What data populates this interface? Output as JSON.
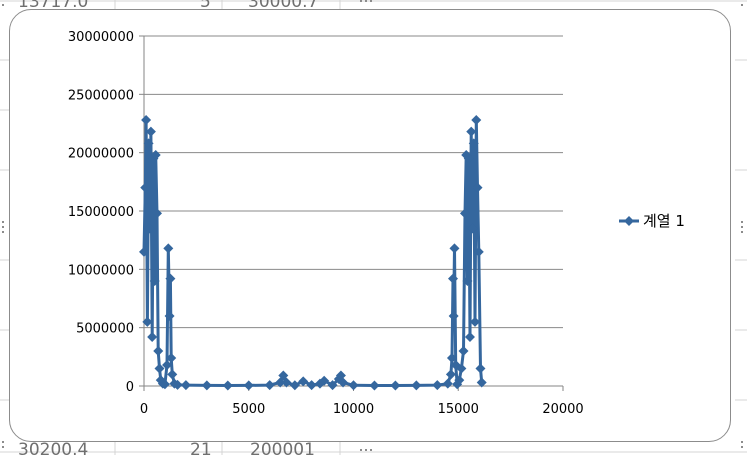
{
  "sheet": {
    "cell_fragments": [
      "13717.0",
      "5",
      "30000.7",
      "30200.4",
      "21",
      "200001"
    ]
  },
  "chart_data": {
    "type": "line",
    "title": "",
    "xlabel": "",
    "ylabel": "",
    "xlim": [
      0,
      20000
    ],
    "ylim": [
      0,
      30000000
    ],
    "x_ticks": [
      "0",
      "5000",
      "10000",
      "15000",
      "20000"
    ],
    "y_ticks": [
      "0",
      "5000000",
      "10000000",
      "15000000",
      "20000000",
      "25000000",
      "30000000"
    ],
    "grid": "horizontal",
    "legend_position": "right",
    "series_color": "#35679E",
    "series": [
      {
        "name": "계열 1",
        "marker": "diamond",
        "points": [
          [
            0,
            11500000
          ],
          [
            60,
            17000000
          ],
          [
            100,
            22800000
          ],
          [
            160,
            5500000
          ],
          [
            220,
            20800000
          ],
          [
            280,
            13500000
          ],
          [
            330,
            21800000
          ],
          [
            390,
            4200000
          ],
          [
            450,
            19500000
          ],
          [
            510,
            9000000
          ],
          [
            560,
            19800000
          ],
          [
            620,
            14800000
          ],
          [
            680,
            3000000
          ],
          [
            740,
            1500000
          ],
          [
            800,
            500000
          ],
          [
            900,
            200000
          ],
          [
            1000,
            150000
          ],
          [
            1100,
            1800000
          ],
          [
            1160,
            11800000
          ],
          [
            1220,
            6000000
          ],
          [
            1260,
            9200000
          ],
          [
            1300,
            2400000
          ],
          [
            1350,
            1000000
          ],
          [
            1450,
            200000
          ],
          [
            1600,
            100000
          ],
          [
            2000,
            80000
          ],
          [
            3000,
            50000
          ],
          [
            4000,
            40000
          ],
          [
            5000,
            50000
          ],
          [
            6000,
            80000
          ],
          [
            6500,
            300000
          ],
          [
            6650,
            900000
          ],
          [
            6800,
            300000
          ],
          [
            7200,
            60000
          ],
          [
            7600,
            400000
          ],
          [
            8000,
            80000
          ],
          [
            8400,
            200000
          ],
          [
            8600,
            450000
          ],
          [
            9000,
            80000
          ],
          [
            9300,
            600000
          ],
          [
            9400,
            900000
          ],
          [
            9500,
            300000
          ],
          [
            10000,
            60000
          ],
          [
            11000,
            40000
          ],
          [
            12000,
            40000
          ],
          [
            13000,
            50000
          ],
          [
            14000,
            80000
          ],
          [
            14500,
            200000
          ],
          [
            14650,
            1000000
          ],
          [
            14700,
            2400000
          ],
          [
            14750,
            9200000
          ],
          [
            14780,
            6000000
          ],
          [
            14820,
            11800000
          ],
          [
            14880,
            1800000
          ],
          [
            14950,
            150000
          ],
          [
            15050,
            500000
          ],
          [
            15150,
            1500000
          ],
          [
            15250,
            3000000
          ],
          [
            15320,
            14800000
          ],
          [
            15380,
            19800000
          ],
          [
            15440,
            9000000
          ],
          [
            15500,
            19500000
          ],
          [
            15560,
            4200000
          ],
          [
            15620,
            21800000
          ],
          [
            15680,
            13500000
          ],
          [
            15740,
            20800000
          ],
          [
            15800,
            5500000
          ],
          [
            15860,
            22800000
          ],
          [
            15920,
            17000000
          ],
          [
            15980,
            11500000
          ],
          [
            16060,
            1500000
          ],
          [
            16120,
            300000
          ]
        ]
      }
    ]
  }
}
